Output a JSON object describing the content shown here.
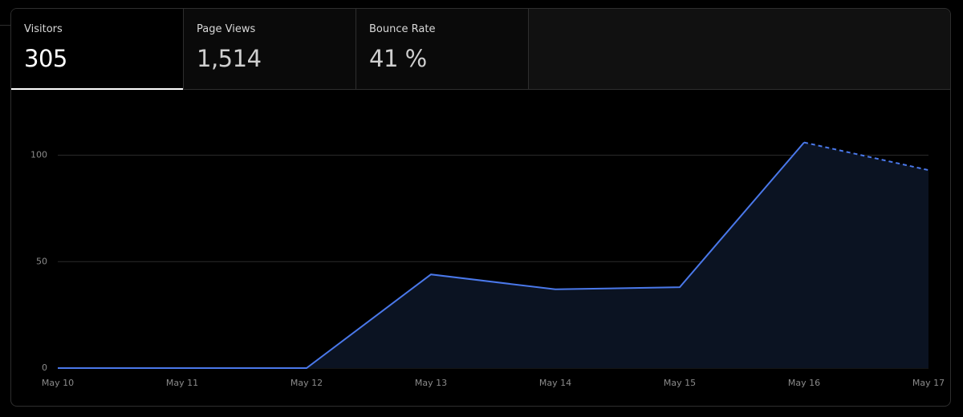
{
  "tabs": [
    {
      "label": "Visitors",
      "value": "305"
    },
    {
      "label": "Page Views",
      "value": "1,514"
    },
    {
      "label": "Bounce Rate",
      "value": "41 %"
    }
  ],
  "chart_data": {
    "type": "line",
    "categories": [
      "May 10",
      "May 11",
      "May 12",
      "May 13",
      "May 14",
      "May 15",
      "May 16",
      "May 17"
    ],
    "values": [
      0,
      0,
      0,
      44,
      37,
      38,
      106,
      93
    ],
    "color": "#4a78ea",
    "area_color": "#0b1322",
    "dashed_from": 6,
    "ylim": [
      0,
      110
    ],
    "yticks": [
      0,
      50,
      100
    ],
    "grid": true
  }
}
